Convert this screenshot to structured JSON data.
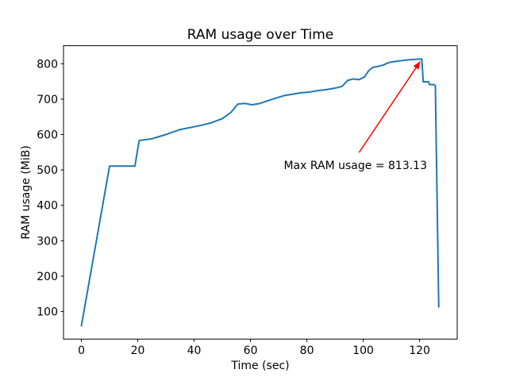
{
  "window": {
    "title": "RAM usage over Time"
  },
  "chart_data": {
    "type": "line",
    "title": "RAM usage over Time",
    "xlabel": "Time (sec)",
    "ylabel": "RAM usage (MiB)",
    "xlim": [
      -6.35,
      133.35
    ],
    "ylim": [
      22.34,
      850.79
    ],
    "xticks": [
      0,
      20,
      40,
      60,
      80,
      100,
      120
    ],
    "yticks": [
      100,
      200,
      300,
      400,
      500,
      600,
      700,
      800
    ],
    "grid": false,
    "legend_position": "none",
    "background": "#ffffff",
    "line_color": "#1f77b4",
    "series": [
      {
        "name": "RAM usage",
        "x": [
          0,
          10,
          19,
          20.5,
          25,
          30,
          35,
          40,
          43,
          46,
          50,
          53,
          55.5,
          58,
          60.5,
          63,
          66,
          69,
          72,
          75,
          78,
          81,
          84,
          87,
          90,
          92.5,
          94.5,
          96.5,
          98.5,
          100.5,
          102,
          103.5,
          105,
          107,
          109,
          111,
          113,
          115,
          117,
          119,
          120.8,
          121.3,
          123.2,
          123.5,
          125.2,
          125.6,
          126.8
        ],
        "y": [
          60,
          511,
          511,
          583,
          588,
          600,
          614,
          622,
          627,
          633,
          645,
          662,
          686,
          688,
          684,
          687,
          695,
          703,
          710,
          714,
          718,
          720,
          724,
          727,
          731,
          736,
          753,
          757,
          755,
          763,
          781,
          790,
          792,
          796,
          803,
          806,
          808,
          810,
          811.5,
          812.5,
          813.13,
          749,
          749,
          741,
          741,
          738,
          113
        ]
      }
    ],
    "annotation": {
      "text": "Max RAM usage = 813.13",
      "color": "#ff0000",
      "text_xy": [
        71.8,
        503
      ],
      "arrow_tail": [
        98.5,
        549
      ],
      "arrow_head": [
        120.2,
        806
      ]
    }
  }
}
